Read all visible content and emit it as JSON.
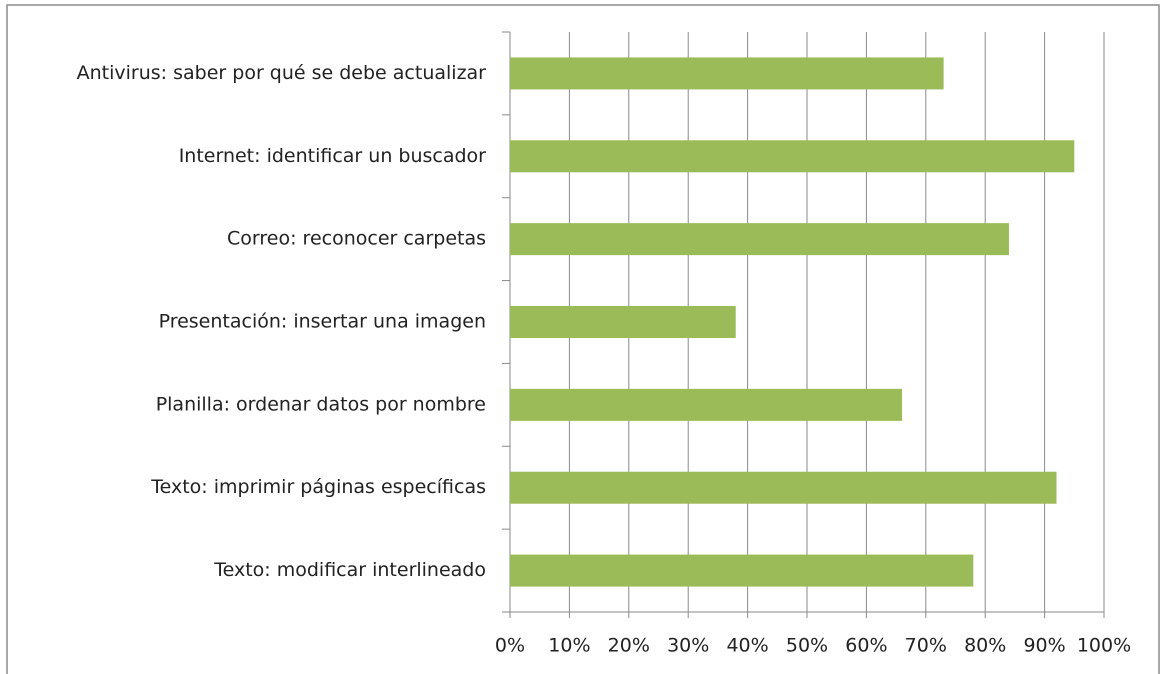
{
  "chart_data": {
    "type": "barh",
    "categories": [
      "Antivirus: saber por qué se debe actualizar",
      "Internet: identificar un buscador",
      "Correo: reconocer carpetas",
      "Presentación: insertar una imagen",
      "Planilla: ordenar datos por nombre",
      "Texto: imprimir páginas específicas",
      "Texto: modificar interlineado"
    ],
    "values": [
      73,
      95,
      84,
      38,
      66,
      92,
      78
    ],
    "color": "#9bbb59",
    "xlim": [
      0,
      100
    ],
    "xticks": [
      {
        "value": 0,
        "label": "0%"
      },
      {
        "value": 10,
        "label": "10%"
      },
      {
        "value": 20,
        "label": "20%"
      },
      {
        "value": 30,
        "label": "30%"
      },
      {
        "value": 40,
        "label": "40%"
      },
      {
        "value": 50,
        "label": "50%"
      },
      {
        "value": 60,
        "label": "60%"
      },
      {
        "value": 70,
        "label": "70%"
      },
      {
        "value": 80,
        "label": "80%"
      },
      {
        "value": 90,
        "label": "90%"
      },
      {
        "value": 100,
        "label": "100%"
      }
    ],
    "grid": true
  }
}
